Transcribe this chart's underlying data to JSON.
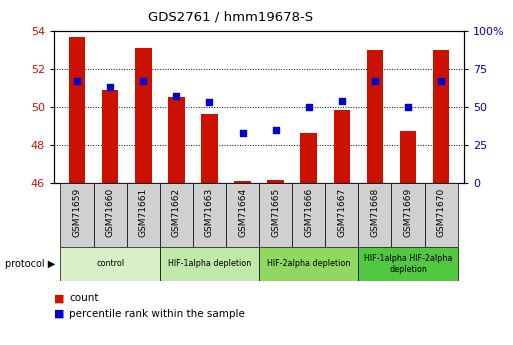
{
  "title": "GDS2761 / hmm19678-S",
  "samples": [
    "GSM71659",
    "GSM71660",
    "GSM71661",
    "GSM71662",
    "GSM71663",
    "GSM71664",
    "GSM71665",
    "GSM71666",
    "GSM71667",
    "GSM71668",
    "GSM71669",
    "GSM71670"
  ],
  "count_values": [
    53.7,
    50.9,
    53.1,
    50.5,
    49.65,
    46.1,
    46.15,
    48.65,
    49.85,
    53.0,
    48.75,
    53.0
  ],
  "percentile_values": [
    67,
    63,
    67,
    57,
    53,
    33,
    35,
    50,
    54,
    67,
    50,
    67
  ],
  "ylim_left": [
    46,
    54
  ],
  "ylim_right": [
    0,
    100
  ],
  "yticks_left": [
    46,
    48,
    50,
    52,
    54
  ],
  "yticks_right": [
    0,
    25,
    50,
    75,
    100
  ],
  "ytick_labels_right": [
    "0",
    "25",
    "50",
    "75",
    "100%"
  ],
  "bar_color": "#cc1100",
  "dot_color": "#0000cc",
  "bar_bottom": 46,
  "protocol_groups": [
    {
      "label": "control",
      "start": 0,
      "end": 2,
      "color": "#d8f0c8"
    },
    {
      "label": "HIF-1alpha depletion",
      "start": 3,
      "end": 5,
      "color": "#c0e8a8"
    },
    {
      "label": "HIF-2alpha depletion",
      "start": 6,
      "end": 8,
      "color": "#90d860"
    },
    {
      "label": "HIF-1alpha HIF-2alpha\ndepletion",
      "start": 9,
      "end": 11,
      "color": "#50c840"
    }
  ],
  "bg_color": "#ffffff",
  "tick_label_color_left": "#cc1100",
  "tick_label_color_right": "#0000cc",
  "sample_box_color": "#d0d0d0",
  "bar_width": 0.5
}
